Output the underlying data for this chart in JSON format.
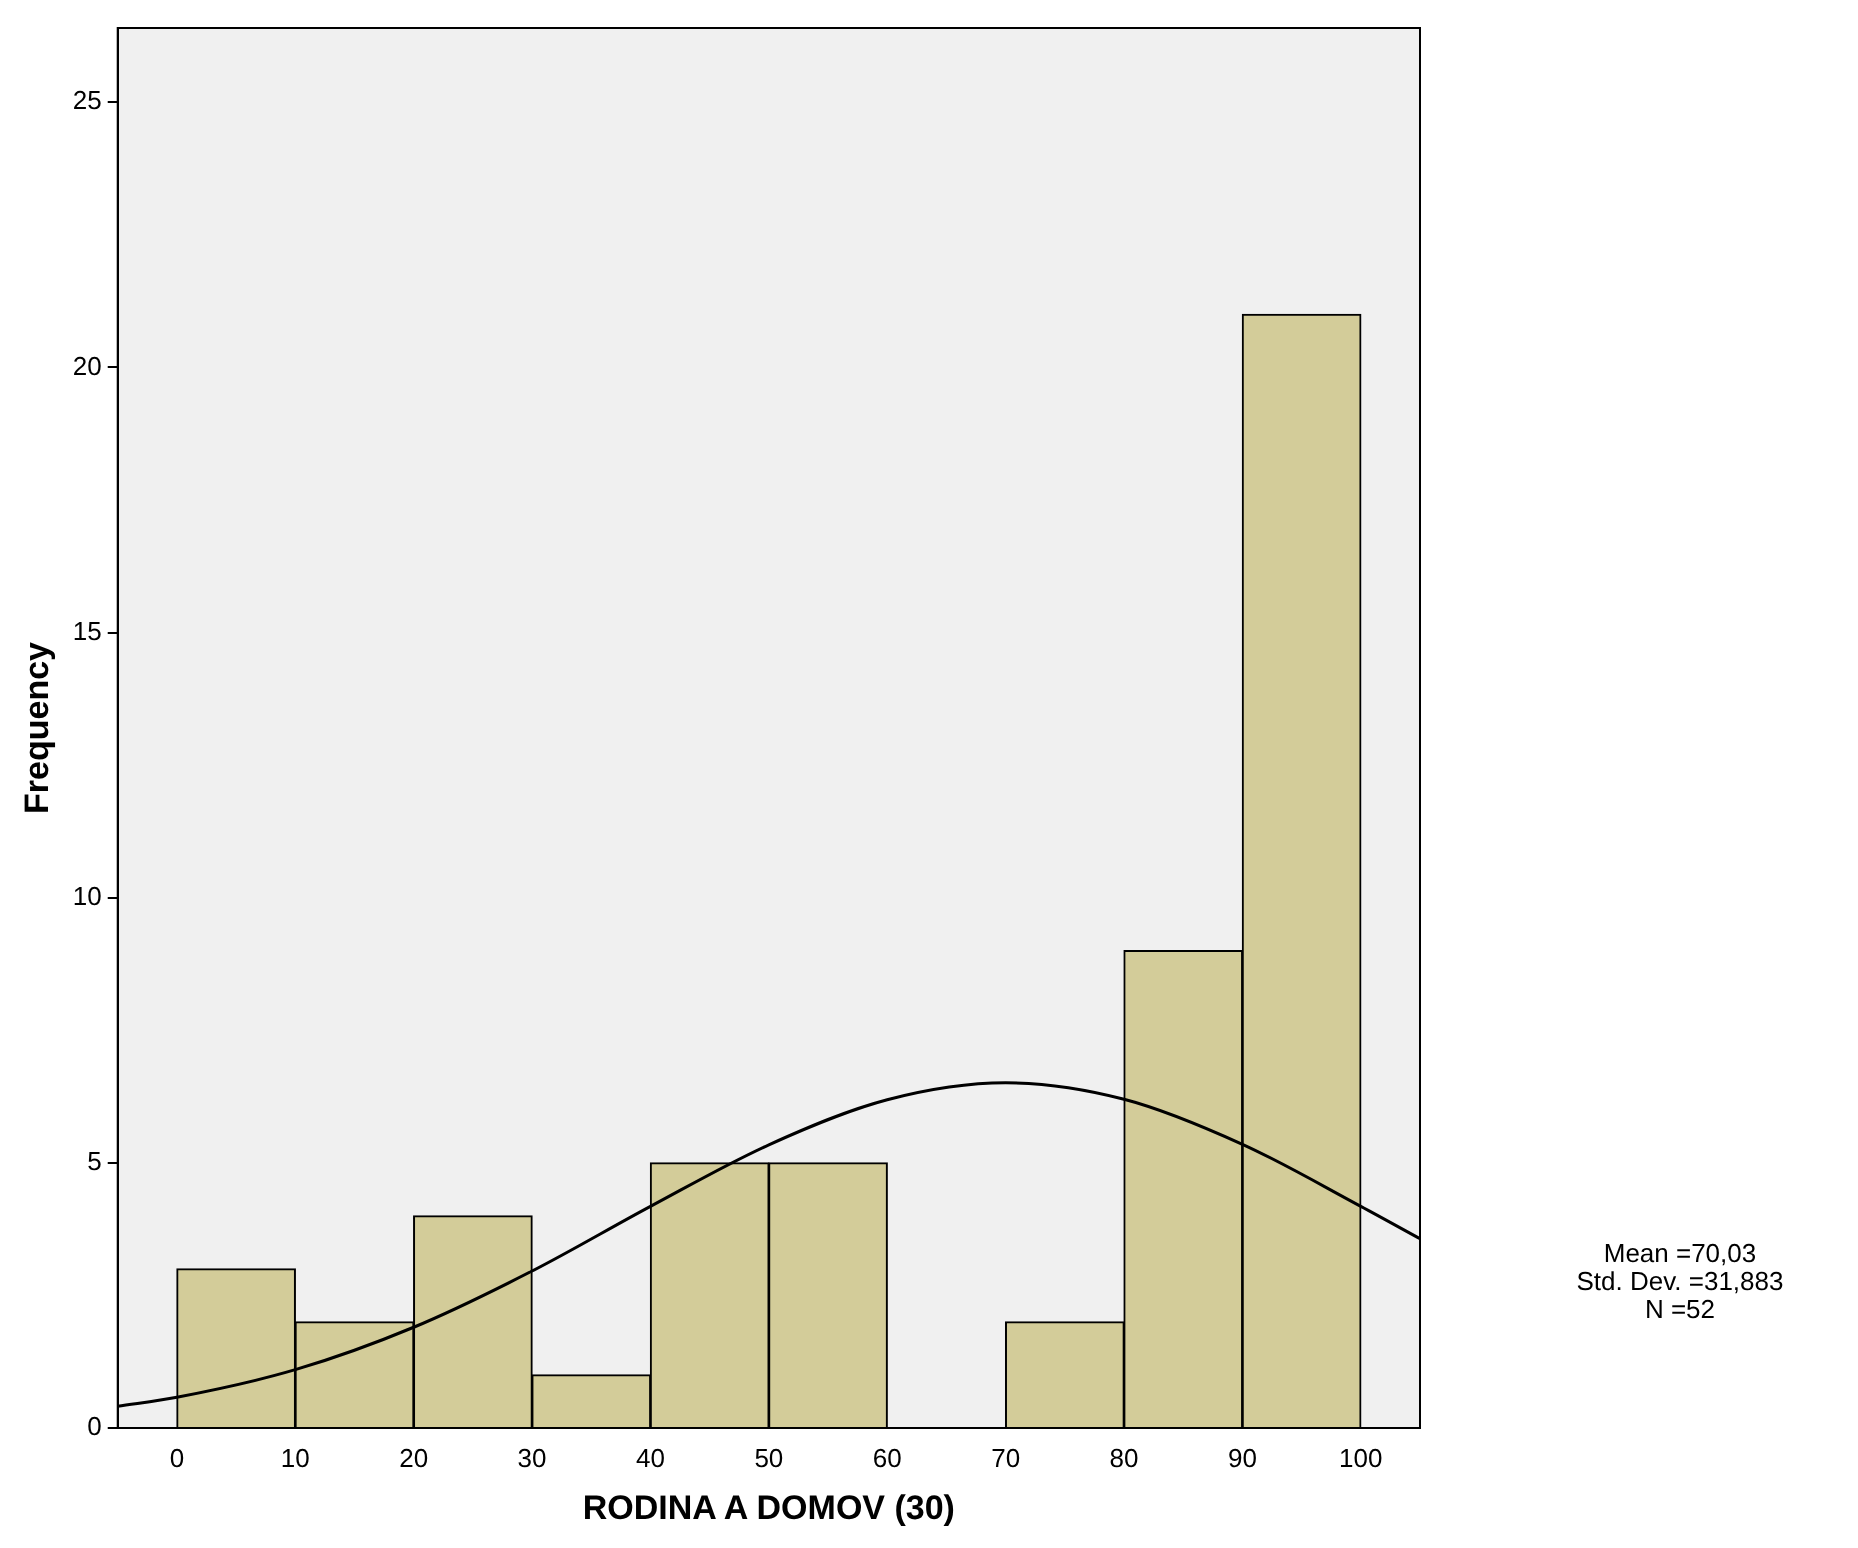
{
  "chart_data": {
    "type": "histogram",
    "xlabel": "RODINA A DOMOV (30)",
    "ylabel": "Frequency",
    "bins": [
      0,
      10,
      20,
      30,
      40,
      50,
      60,
      70,
      80,
      90,
      100
    ],
    "values": [
      3,
      2,
      4,
      1,
      5,
      5,
      0,
      2,
      9,
      21
    ],
    "color": "#d3cc99",
    "series": [
      {
        "type": "line",
        "color": "#000000",
        "x": [
          -5,
          0,
          10,
          20,
          30,
          40,
          50,
          60,
          70,
          80,
          90,
          100,
          105
        ],
        "values": [
          0.41,
          0.58,
          1.1,
          1.9,
          2.96,
          4.18,
          5.34,
          6.19,
          6.51,
          6.2,
          5.35,
          4.18,
          3.57
        ]
      }
    ],
    "xlim": [
      -5,
      105
    ],
    "xticks": [
      0,
      10,
      20,
      30,
      40,
      50,
      60,
      70,
      80,
      90,
      100
    ],
    "ylim": [
      0,
      26.4
    ],
    "yticks": [
      0,
      5,
      10,
      15,
      20,
      25
    ],
    "grid": false,
    "legend": false,
    "annotations": [
      "Mean =70,03",
      "Std. Dev. =31,883",
      "N =52"
    ]
  }
}
